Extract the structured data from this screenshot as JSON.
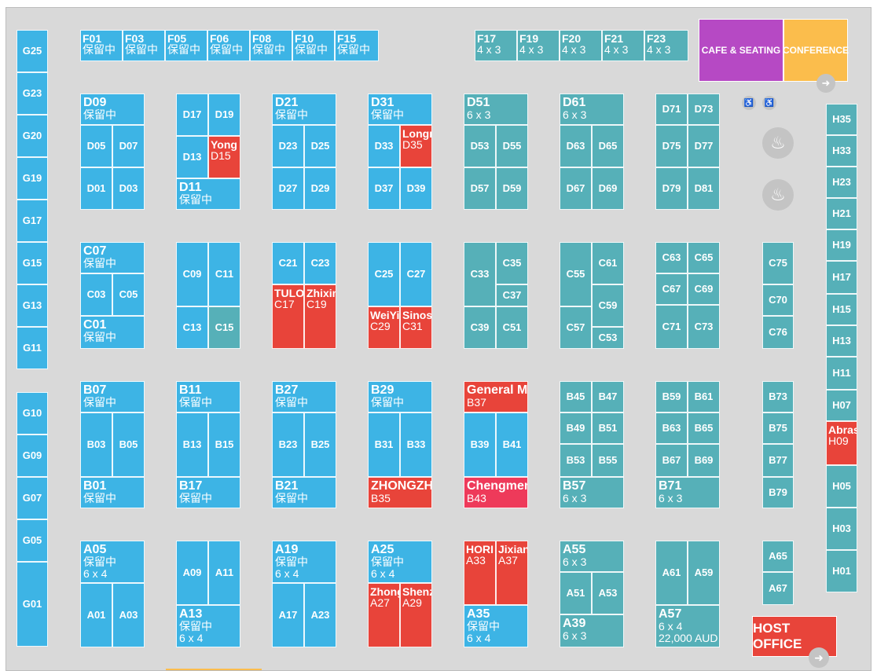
{
  "colors": {
    "blue": "#3db4e5",
    "teal": "#56b0b8",
    "red": "#e8443a",
    "pink": "#ee3a5a",
    "cafe": "#b649c4",
    "conference": "#fbbd4c"
  },
  "facilities": {
    "cafe": "CAFE & SEATING",
    "conference": "CONFERENCE",
    "host_office": "HOST OFFICE"
  },
  "icons": [
    "restroom-icon",
    "restroom-icon",
    "lounge-seating-icon",
    "lounge-seating-icon",
    "emergency-exit-icon",
    "emergency-exit-icon"
  ],
  "booths": [
    {
      "code": "G25",
      "color": "blue"
    },
    {
      "code": "G23",
      "color": "blue"
    },
    {
      "code": "G20",
      "color": "blue"
    },
    {
      "code": "G19",
      "color": "blue"
    },
    {
      "code": "G17",
      "color": "blue"
    },
    {
      "code": "G15",
      "color": "blue"
    },
    {
      "code": "G13",
      "color": "blue"
    },
    {
      "code": "G11",
      "color": "blue"
    },
    {
      "code": "G10",
      "color": "blue"
    },
    {
      "code": "G09",
      "color": "blue"
    },
    {
      "code": "G07",
      "color": "blue"
    },
    {
      "code": "G05",
      "color": "blue"
    },
    {
      "code": "G01",
      "color": "blue"
    },
    {
      "code": "F01",
      "sub": "保留中",
      "color": "blue"
    },
    {
      "code": "F03",
      "sub": "保留中",
      "color": "blue"
    },
    {
      "code": "F05",
      "sub": "保留中",
      "color": "blue"
    },
    {
      "code": "F06",
      "sub": "保留中",
      "color": "blue"
    },
    {
      "code": "F08",
      "sub": "保留中",
      "color": "blue"
    },
    {
      "code": "F10",
      "sub": "保留中",
      "color": "blue"
    },
    {
      "code": "F15",
      "sub": "保留中",
      "color": "blue"
    },
    {
      "code": "F17",
      "sub": "4 x 3",
      "color": "teal"
    },
    {
      "code": "F19",
      "sub": "4 x 3",
      "color": "teal"
    },
    {
      "code": "F20",
      "sub": "4 x 3",
      "color": "teal"
    },
    {
      "code": "F21",
      "sub": "4 x 3",
      "color": "teal"
    },
    {
      "code": "F23",
      "sub": "4 x 3",
      "color": "teal"
    },
    {
      "code": "D09",
      "sub": "保留中",
      "color": "blue"
    },
    {
      "code": "D05",
      "color": "blue"
    },
    {
      "code": "D07",
      "color": "blue"
    },
    {
      "code": "D01",
      "color": "blue"
    },
    {
      "code": "D03",
      "color": "blue"
    },
    {
      "code": "D17",
      "color": "blue"
    },
    {
      "code": "D19",
      "color": "blue"
    },
    {
      "code": "D13",
      "color": "blue"
    },
    {
      "code": "D15",
      "name": "Yong",
      "color": "red"
    },
    {
      "code": "D11",
      "sub": "保留中",
      "color": "blue"
    },
    {
      "code": "D21",
      "sub": "保留中",
      "color": "blue"
    },
    {
      "code": "D23",
      "color": "blue"
    },
    {
      "code": "D25",
      "color": "blue"
    },
    {
      "code": "D27",
      "color": "blue"
    },
    {
      "code": "D29",
      "color": "blue"
    },
    {
      "code": "D31",
      "sub": "保留中",
      "color": "blue"
    },
    {
      "code": "D33",
      "color": "blue"
    },
    {
      "code": "D35",
      "name": "Longr",
      "color": "red"
    },
    {
      "code": "D37",
      "color": "blue"
    },
    {
      "code": "D39",
      "color": "blue"
    },
    {
      "code": "D51",
      "sub": "6 x 3",
      "color": "teal"
    },
    {
      "code": "D53",
      "color": "teal"
    },
    {
      "code": "D55",
      "color": "teal"
    },
    {
      "code": "D57",
      "color": "teal"
    },
    {
      "code": "D59",
      "color": "teal"
    },
    {
      "code": "D61",
      "sub": "6 x 3",
      "color": "teal"
    },
    {
      "code": "D63",
      "color": "teal"
    },
    {
      "code": "D65",
      "color": "teal"
    },
    {
      "code": "D67",
      "color": "teal"
    },
    {
      "code": "D69",
      "color": "teal"
    },
    {
      "code": "D71",
      "color": "teal"
    },
    {
      "code": "D73",
      "color": "teal"
    },
    {
      "code": "D75",
      "color": "teal"
    },
    {
      "code": "D77",
      "color": "teal"
    },
    {
      "code": "D79",
      "color": "teal"
    },
    {
      "code": "D81",
      "color": "teal"
    },
    {
      "code": "C07",
      "sub": "保留中",
      "color": "blue"
    },
    {
      "code": "C03",
      "color": "blue"
    },
    {
      "code": "C05",
      "color": "blue"
    },
    {
      "code": "C01",
      "sub": "保留中",
      "color": "blue"
    },
    {
      "code": "C09",
      "color": "blue"
    },
    {
      "code": "C11",
      "color": "blue"
    },
    {
      "code": "C13",
      "color": "blue"
    },
    {
      "code": "C15",
      "color": "teal"
    },
    {
      "code": "C21",
      "color": "blue"
    },
    {
      "code": "C23",
      "color": "blue"
    },
    {
      "code": "C17",
      "name": "TULO",
      "color": "red"
    },
    {
      "code": "C19",
      "name": "Zhixin",
      "color": "red"
    },
    {
      "code": "C25",
      "color": "blue"
    },
    {
      "code": "C27",
      "color": "blue"
    },
    {
      "code": "C29",
      "name": "WeiYi",
      "color": "red"
    },
    {
      "code": "C31",
      "name": "Sinos",
      "color": "red"
    },
    {
      "code": "C33",
      "color": "teal"
    },
    {
      "code": "C35",
      "color": "teal"
    },
    {
      "code": "C37",
      "color": "teal"
    },
    {
      "code": "C39",
      "color": "teal"
    },
    {
      "code": "C51",
      "color": "teal"
    },
    {
      "code": "C55",
      "color": "teal"
    },
    {
      "code": "C61",
      "color": "teal"
    },
    {
      "code": "C59",
      "color": "teal"
    },
    {
      "code": "C57",
      "color": "teal"
    },
    {
      "code": "C53",
      "color": "teal"
    },
    {
      "code": "C63",
      "color": "teal"
    },
    {
      "code": "C65",
      "color": "teal"
    },
    {
      "code": "C67",
      "color": "teal"
    },
    {
      "code": "C69",
      "color": "teal"
    },
    {
      "code": "C71",
      "color": "teal"
    },
    {
      "code": "C73",
      "color": "teal"
    },
    {
      "code": "C75",
      "color": "teal"
    },
    {
      "code": "C70",
      "color": "teal"
    },
    {
      "code": "C76",
      "color": "teal"
    },
    {
      "code": "B07",
      "sub": "保留中",
      "color": "blue"
    },
    {
      "code": "B03",
      "color": "blue"
    },
    {
      "code": "B05",
      "color": "blue"
    },
    {
      "code": "B01",
      "sub": "保留中",
      "color": "blue"
    },
    {
      "code": "B11",
      "sub": "保留中",
      "color": "blue"
    },
    {
      "code": "B13",
      "color": "blue"
    },
    {
      "code": "B15",
      "color": "blue"
    },
    {
      "code": "B17",
      "sub": "保留中",
      "color": "blue"
    },
    {
      "code": "B27",
      "sub": "保留中",
      "color": "blue"
    },
    {
      "code": "B23",
      "color": "blue"
    },
    {
      "code": "B25",
      "color": "blue"
    },
    {
      "code": "B21",
      "sub": "保留中",
      "color": "blue"
    },
    {
      "code": "B29",
      "sub": "保留中",
      "color": "blue"
    },
    {
      "code": "B31",
      "color": "blue"
    },
    {
      "code": "B33",
      "color": "blue"
    },
    {
      "code": "B35",
      "name": "ZHONGZHI I",
      "color": "red"
    },
    {
      "code": "B37",
      "name": "General Ma",
      "color": "red"
    },
    {
      "code": "B39",
      "color": "blue"
    },
    {
      "code": "B41",
      "color": "blue"
    },
    {
      "code": "B43",
      "name": "Chengmeng",
      "color": "pink"
    },
    {
      "code": "B45",
      "color": "teal"
    },
    {
      "code": "B47",
      "color": "teal"
    },
    {
      "code": "B49",
      "color": "teal"
    },
    {
      "code": "B51",
      "color": "teal"
    },
    {
      "code": "B53",
      "color": "teal"
    },
    {
      "code": "B55",
      "color": "teal"
    },
    {
      "code": "B57",
      "sub": "6 x 3",
      "color": "teal"
    },
    {
      "code": "B59",
      "color": "teal"
    },
    {
      "code": "B61",
      "color": "teal"
    },
    {
      "code": "B63",
      "color": "teal"
    },
    {
      "code": "B65",
      "color": "teal"
    },
    {
      "code": "B67",
      "color": "teal"
    },
    {
      "code": "B69",
      "color": "teal"
    },
    {
      "code": "B71",
      "sub": "6 x 3",
      "color": "teal"
    },
    {
      "code": "B73",
      "color": "teal"
    },
    {
      "code": "B75",
      "color": "teal"
    },
    {
      "code": "B77",
      "color": "teal"
    },
    {
      "code": "B79",
      "color": "teal"
    },
    {
      "code": "A05",
      "sub": "保留中",
      "extra": "6 x 4",
      "color": "blue"
    },
    {
      "code": "A01",
      "color": "blue"
    },
    {
      "code": "A03",
      "color": "blue"
    },
    {
      "code": "A09",
      "color": "blue"
    },
    {
      "code": "A11",
      "color": "blue"
    },
    {
      "code": "A13",
      "sub": "保留中",
      "extra": "6 x 4",
      "color": "blue"
    },
    {
      "code": "A19",
      "sub": "保留中",
      "extra": "6 x 4",
      "color": "blue"
    },
    {
      "code": "A17",
      "color": "blue"
    },
    {
      "code": "A23",
      "color": "blue"
    },
    {
      "code": "A25",
      "sub": "保留中",
      "extra": "6 x 4",
      "color": "blue"
    },
    {
      "code": "A27",
      "name": "Zhong",
      "color": "red"
    },
    {
      "code": "A29",
      "name": "Shenz",
      "color": "red"
    },
    {
      "code": "A33",
      "name": "HORI",
      "color": "red"
    },
    {
      "code": "A37",
      "name": "Jixian",
      "color": "red"
    },
    {
      "code": "A35",
      "sub": "保留中",
      "extra": "6 x 4",
      "color": "blue"
    },
    {
      "code": "A55",
      "sub": "6 x 3",
      "color": "teal"
    },
    {
      "code": "A51",
      "color": "teal"
    },
    {
      "code": "A53",
      "color": "teal"
    },
    {
      "code": "A39",
      "sub": "6 x 3",
      "color": "teal"
    },
    {
      "code": "A61",
      "color": "teal"
    },
    {
      "code": "A59",
      "color": "teal"
    },
    {
      "code": "A57",
      "sub": "6 x 4",
      "extra": "22,000 AUD",
      "color": "teal"
    },
    {
      "code": "A65",
      "color": "teal"
    },
    {
      "code": "A67",
      "color": "teal"
    },
    {
      "code": "H35",
      "color": "teal"
    },
    {
      "code": "H33",
      "color": "teal"
    },
    {
      "code": "H23",
      "color": "teal"
    },
    {
      "code": "H21",
      "color": "teal"
    },
    {
      "code": "H19",
      "color": "teal"
    },
    {
      "code": "H17",
      "color": "teal"
    },
    {
      "code": "H15",
      "color": "teal"
    },
    {
      "code": "H13",
      "color": "teal"
    },
    {
      "code": "H11",
      "color": "teal"
    },
    {
      "code": "H07",
      "color": "teal"
    },
    {
      "code": "H09",
      "name": "Abras",
      "color": "red"
    },
    {
      "code": "H05",
      "color": "teal"
    },
    {
      "code": "H03",
      "color": "teal"
    },
    {
      "code": "H01",
      "color": "teal"
    }
  ]
}
